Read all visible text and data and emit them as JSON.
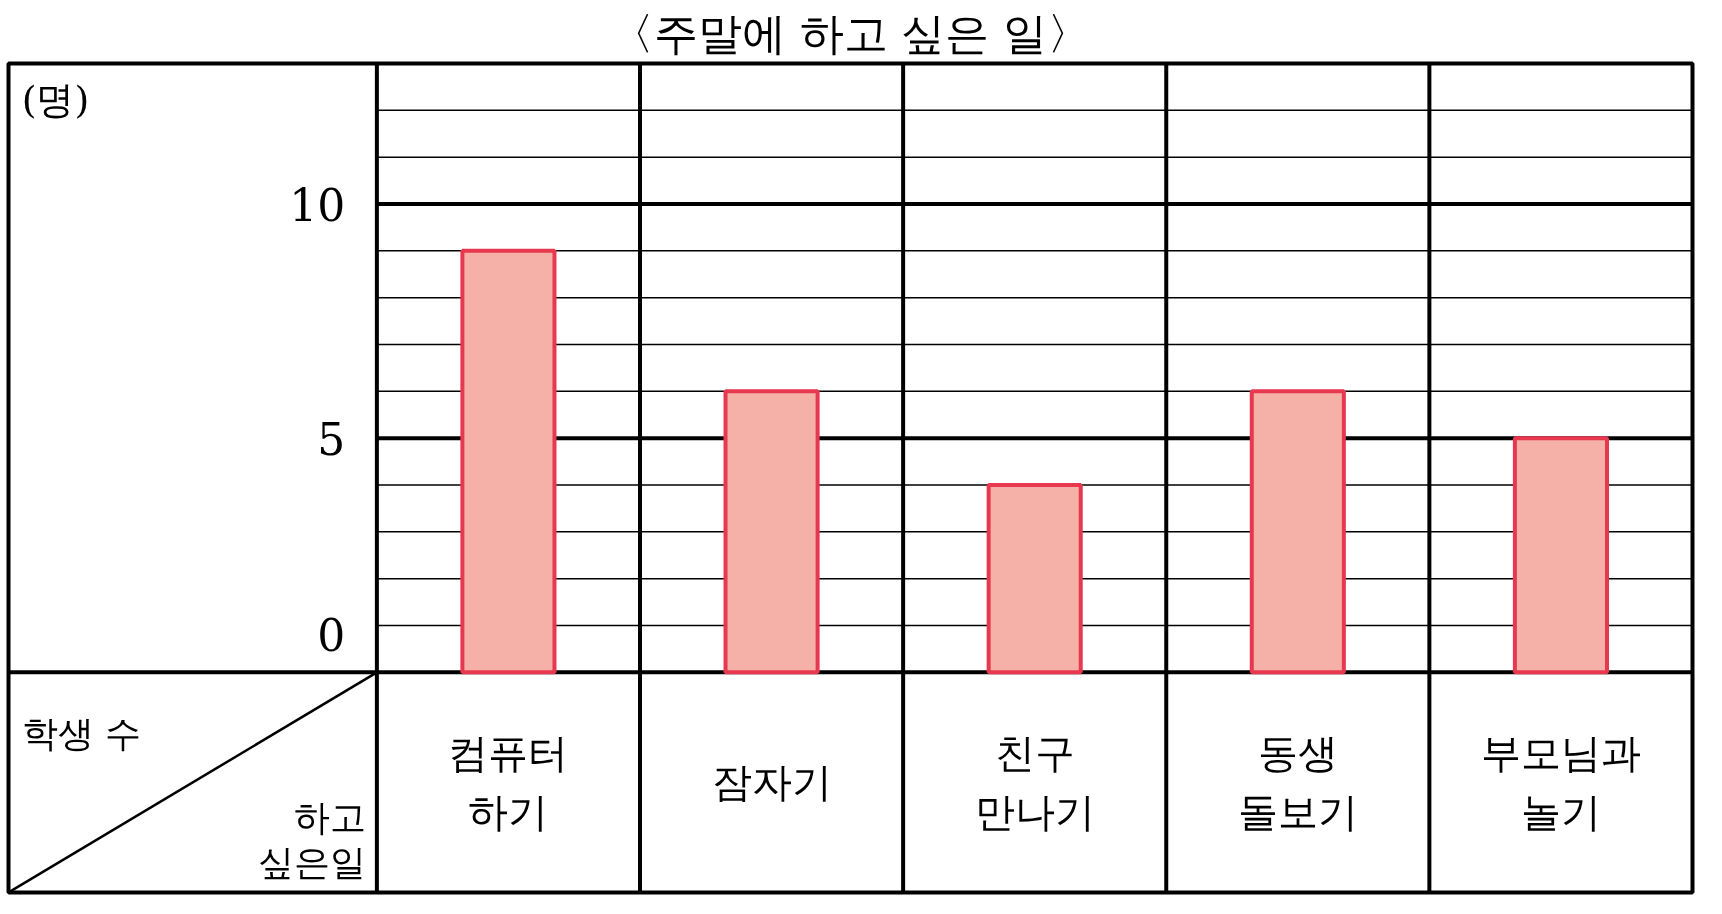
{
  "chart_data": {
    "type": "bar",
    "title": "〈주말에 하고 싶은 일〉",
    "categories": [
      "컴퓨터 하기",
      "잠자기",
      "친구 만나기",
      "동생 돌보기",
      "부모님과 놀기"
    ],
    "values": [
      9,
      6,
      4,
      6,
      5
    ],
    "color": "#f5b0a8",
    "ylim": [
      0,
      13
    ],
    "yticks": [
      0,
      5,
      10
    ],
    "grid": "y",
    "xlabel": "하고 싶은일",
    "annotations": [
      "(명)",
      "학생 수"
    ]
  }
}
